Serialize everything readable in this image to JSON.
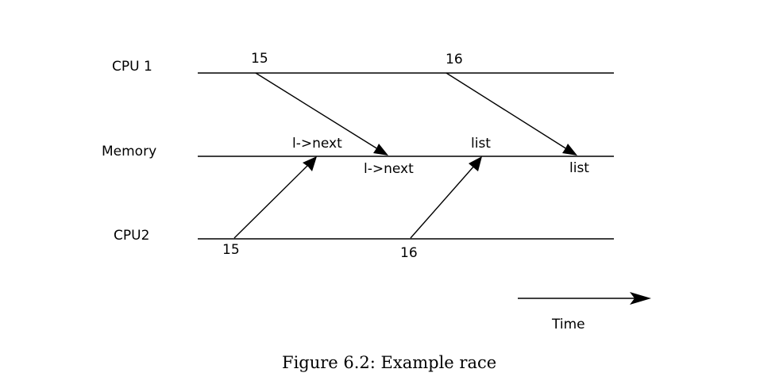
{
  "lanes": {
    "cpu1": "CPU 1",
    "memory": "Memory",
    "cpu2": "CPU2"
  },
  "events": {
    "cpu1_first": "15",
    "cpu1_second": "16",
    "cpu2_first": "15",
    "cpu2_second": "16"
  },
  "memory_labels": {
    "cpu2_write_first": "l->next",
    "cpu1_write_first": "l->next",
    "cpu2_write_second": "list",
    "cpu1_write_second": "list"
  },
  "time_label": "Time",
  "caption": "Figure 6.2: Example race"
}
